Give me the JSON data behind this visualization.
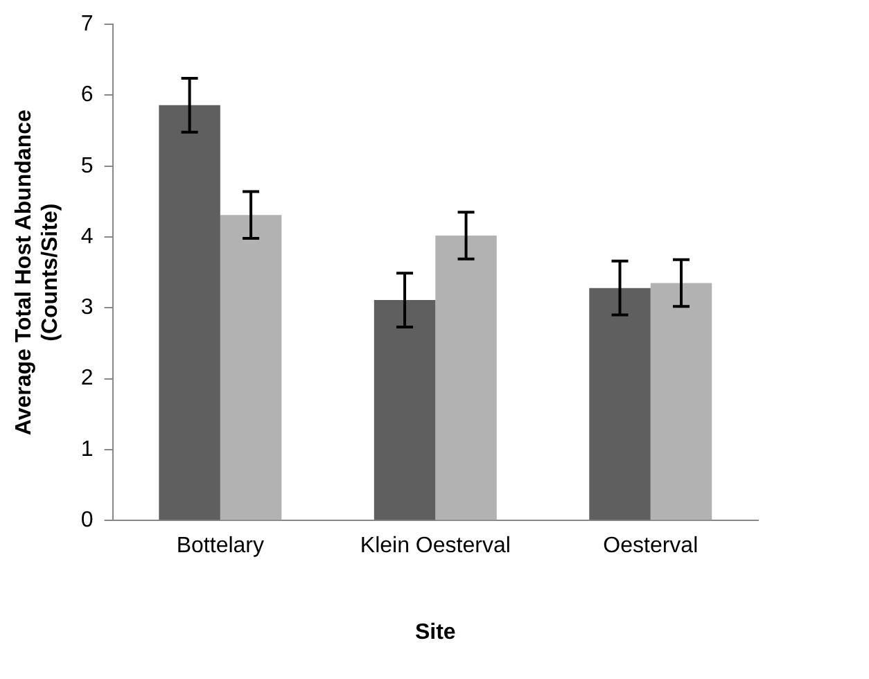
{
  "chart_data": {
    "type": "bar",
    "xlabel": "Site",
    "ylabel": "Average Total Host Abundance (Counts/Site)",
    "categories": [
      "Bottelary",
      "Klein Oesterval",
      "Oesterval"
    ],
    "series": [
      {
        "color": "#5f5f5f",
        "values": [
          5.86,
          3.11,
          3.28
        ],
        "errors": [
          0.38,
          0.38,
          0.38
        ]
      },
      {
        "color": "#b2b2b2",
        "values": [
          4.31,
          4.02,
          3.35
        ],
        "errors": [
          0.33,
          0.33,
          0.33
        ]
      }
    ],
    "ylim": [
      0,
      7
    ],
    "yticks": [
      0,
      1,
      2,
      3,
      4,
      5,
      6,
      7
    ],
    "grid": false,
    "legend": false
  }
}
